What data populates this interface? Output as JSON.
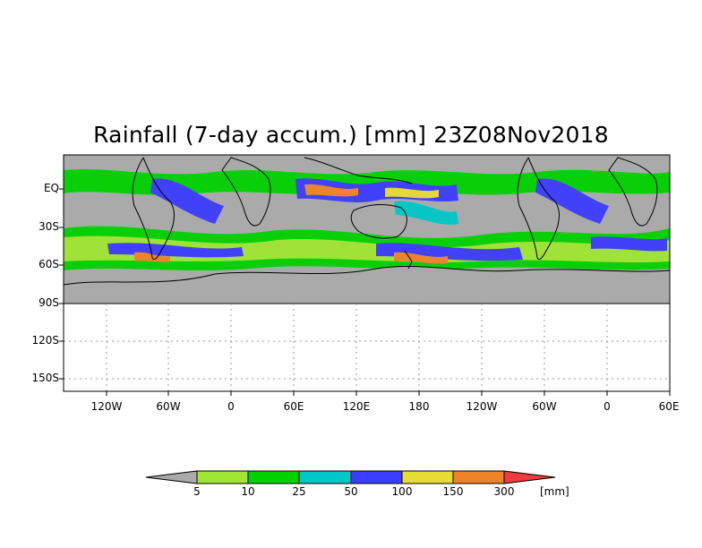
{
  "title": "Rainfall (7-day accum.) [mm] 23Z08Nov2018",
  "y_axis": {
    "ticks": [
      "EQ",
      "30S",
      "60S",
      "90S",
      "120S",
      "150S"
    ]
  },
  "x_axis": {
    "ticks": [
      "120W",
      "60W",
      "0",
      "60E",
      "120E",
      "180",
      "120W",
      "60W",
      "0",
      "60E"
    ]
  },
  "colorbar": {
    "units": "[mm]",
    "levels": [
      "5",
      "10",
      "25",
      "50",
      "100",
      "150",
      "300"
    ],
    "colors": [
      "#aaaaaa",
      "#a0e632",
      "#00d200",
      "#00c8c8",
      "#3c3cff",
      "#e6dc32",
      "#f08228",
      "#f03c3c"
    ]
  },
  "colors": {
    "land_mask": "#aaaaaa",
    "map_frame": "#000000",
    "gridline": "#999999"
  }
}
